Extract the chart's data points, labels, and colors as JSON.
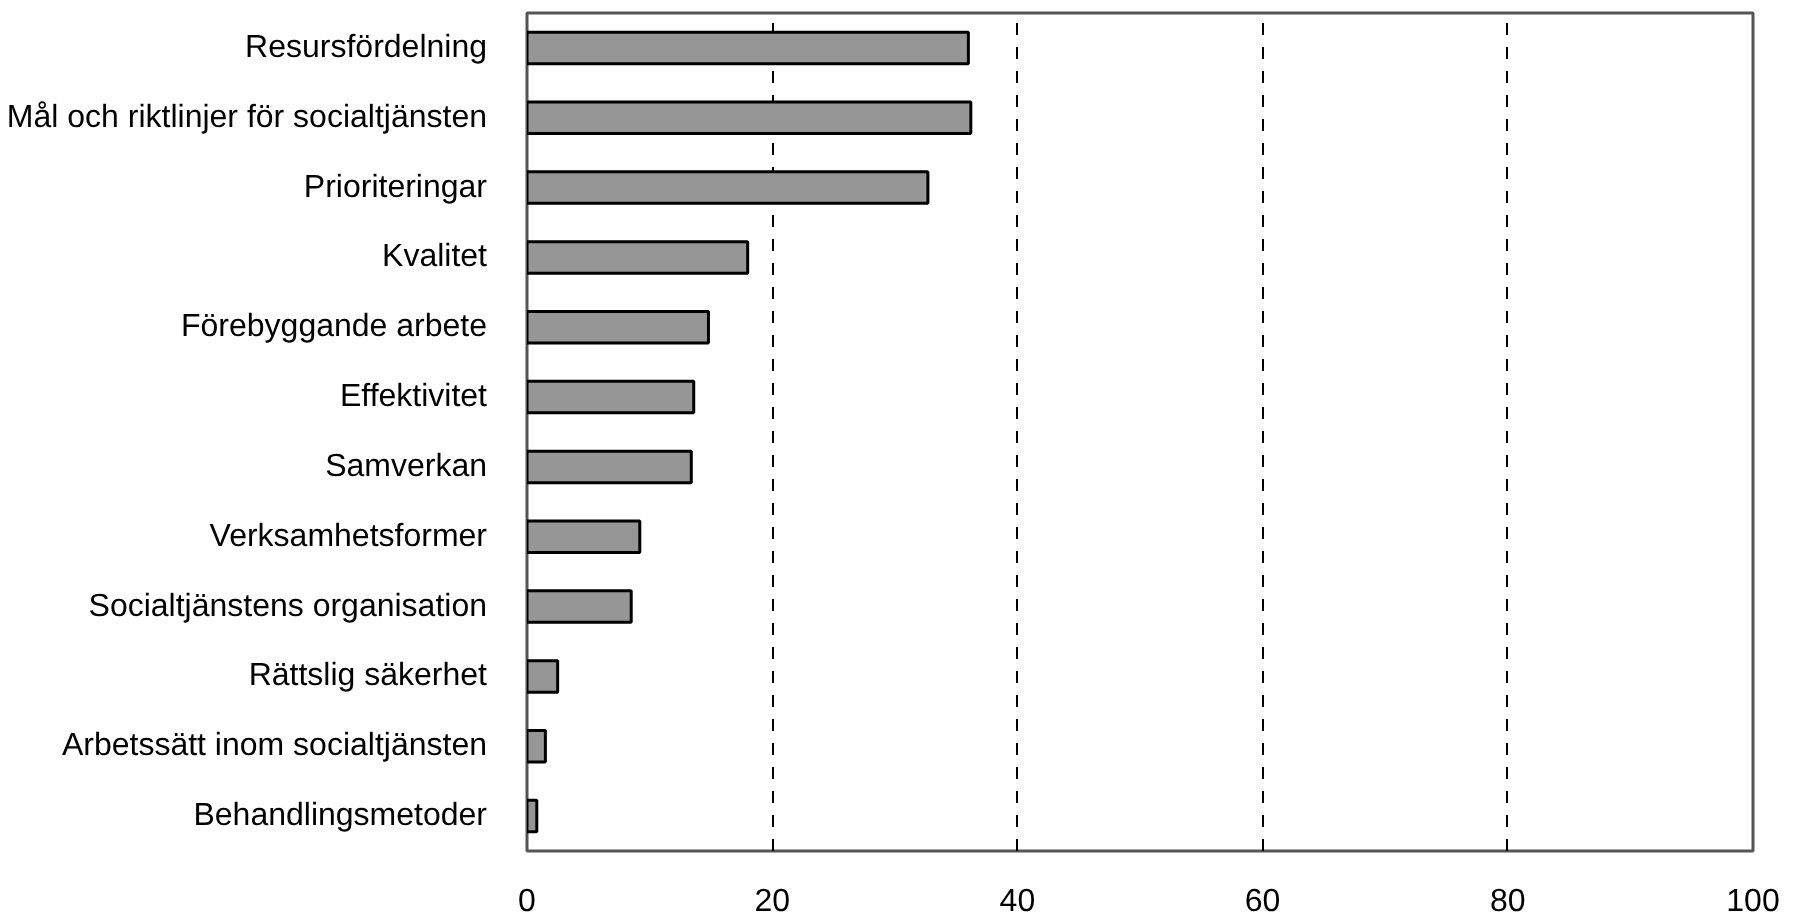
{
  "chart_data": {
    "type": "bar",
    "orientation": "horizontal",
    "categories": [
      "Resursfördelning",
      "Mål och riktlinjer för socialtjänsten",
      "Prioriteringar",
      "Kvalitet",
      "Förebyggande arbete",
      "Effektivitet",
      "Samverkan",
      "Verksamhetsformer",
      "Socialtjänstens organisation",
      "Rättslig säkerhet",
      "Arbetssätt inom socialtjänsten",
      "Behandlingsmetoder"
    ],
    "values": [
      36,
      36.2,
      32.7,
      18,
      14.8,
      13.6,
      13.4,
      9.2,
      8.5,
      2.5,
      1.5,
      0.8
    ],
    "color": "#969696",
    "xlim": [
      0,
      100
    ],
    "xticks": [
      0,
      20,
      40,
      60,
      80,
      100
    ],
    "grid": "x",
    "line_style": "dashed"
  }
}
